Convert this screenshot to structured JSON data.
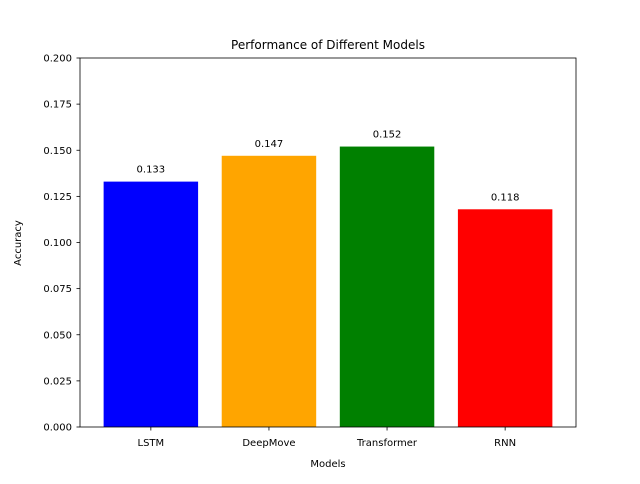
{
  "chart_data": {
    "type": "bar",
    "title": "Performance of Different Models",
    "xlabel": "Models",
    "ylabel": "Accuracy",
    "categories": [
      "LSTM",
      "DeepMove",
      "Transformer",
      "RNN"
    ],
    "values": [
      0.133,
      0.147,
      0.152,
      0.118
    ],
    "value_labels": [
      "0.133",
      "0.147",
      "0.152",
      "0.118"
    ],
    "colors": [
      "#0000ff",
      "#ffa500",
      "#008000",
      "#ff0000"
    ],
    "ylim": [
      0,
      0.2
    ],
    "yticks": [
      0.0,
      0.025,
      0.05,
      0.075,
      0.1,
      0.125,
      0.15,
      0.175,
      0.2
    ],
    "ytick_labels": [
      "0.000",
      "0.025",
      "0.050",
      "0.075",
      "0.100",
      "0.125",
      "0.150",
      "0.175",
      "0.200"
    ],
    "grid": false,
    "legend": "none"
  }
}
